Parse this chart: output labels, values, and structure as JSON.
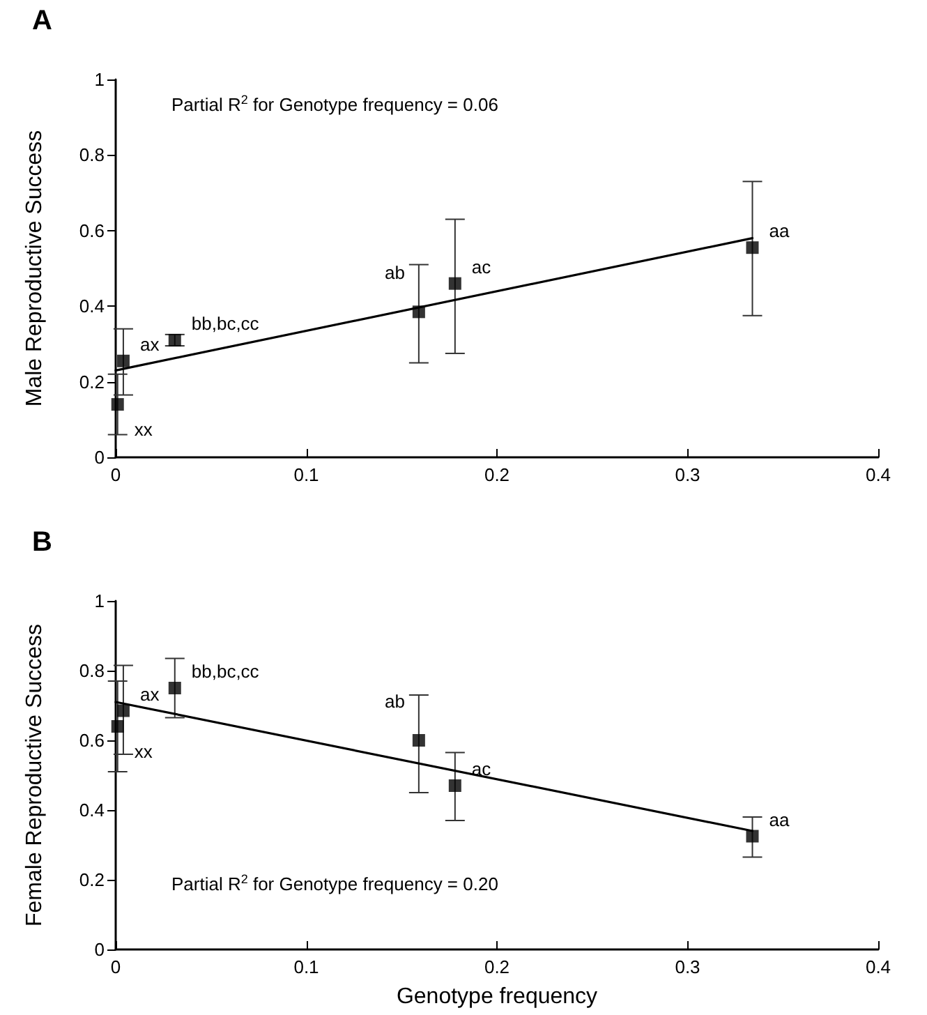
{
  "chart_data": [
    {
      "type": "scatter",
      "title": "A",
      "ylabel": "Male Reproductive Success",
      "xlim": [
        0,
        0.4
      ],
      "xticks": [
        0,
        0.1,
        0.2,
        0.3,
        0.4
      ],
      "ylim": [
        0,
        1
      ],
      "yticks": [
        0,
        0.2,
        0.4,
        0.6,
        0.8,
        1
      ],
      "grid": false,
      "marker": "square",
      "series": [
        {
          "color": "#000000",
          "x": [
            0.001,
            0.004,
            0.031,
            0.159,
            0.178,
            0.334
          ],
          "values": [
            0.14,
            0.255,
            0.31,
            0.385,
            0.46,
            0.555
          ],
          "errors": [
            [
              0.06,
              0.22
            ],
            [
              0.165,
              0.34
            ],
            [
              0.295,
              0.325
            ],
            [
              0.25,
              0.51
            ],
            [
              0.275,
              0.63
            ],
            [
              0.375,
              0.73
            ]
          ]
        },
        {
          "type": "line",
          "color": "#000000",
          "marker": "none",
          "line_style": "solid",
          "x": [
            0,
            0.334
          ],
          "values": [
            0.23,
            0.58
          ]
        }
      ],
      "annotations": [
        "Partial R$^{2}$ for Genotype frequency = 0.06",
        {
          "text": "xx",
          "x": 0.001,
          "y": 0.14
        },
        {
          "text": "ax",
          "x": 0.004,
          "y": 0.255
        },
        {
          "text": "bb,bc,cc",
          "x": 0.031,
          "y": 0.31
        },
        {
          "text": "ab",
          "x": 0.159,
          "y": 0.385
        },
        {
          "text": "ac",
          "x": 0.178,
          "y": 0.46
        },
        {
          "text": "aa",
          "x": 0.334,
          "y": 0.555
        }
      ]
    },
    {
      "type": "scatter",
      "title": "B",
      "ylabel": "Female Reproductive Success",
      "xlabel": "Genotype frequency",
      "xlim": [
        0,
        0.4
      ],
      "xticks": [
        0,
        0.1,
        0.2,
        0.3,
        0.4
      ],
      "ylim": [
        0,
        1
      ],
      "yticks": [
        0,
        0.2,
        0.4,
        0.6,
        0.8,
        1
      ],
      "grid": false,
      "marker": "square",
      "series": [
        {
          "color": "#000000",
          "x": [
            0.001,
            0.004,
            0.031,
            0.159,
            0.178,
            0.334
          ],
          "values": [
            0.64,
            0.685,
            0.75,
            0.6,
            0.47,
            0.325
          ],
          "errors": [
            [
              0.51,
              0.77
            ],
            [
              0.56,
              0.815
            ],
            [
              0.665,
              0.835
            ],
            [
              0.45,
              0.73
            ],
            [
              0.37,
              0.565
            ],
            [
              0.265,
              0.38
            ]
          ]
        },
        {
          "type": "line",
          "color": "#000000",
          "marker": "none",
          "line_style": "solid",
          "x": [
            0,
            0.334
          ],
          "values": [
            0.71,
            0.34
          ]
        }
      ],
      "annotations": [
        "Partial R$^{2}$ for Genotype frequency = 0.20",
        {
          "text": "xx",
          "x": 0.001,
          "y": 0.64
        },
        {
          "text": "ax",
          "x": 0.004,
          "y": 0.685
        },
        {
          "text": "bb,bc,cc",
          "x": 0.031,
          "y": 0.75
        },
        {
          "text": "ab",
          "x": 0.159,
          "y": 0.6
        },
        {
          "text": "ac",
          "x": 0.178,
          "y": 0.47
        },
        {
          "text": "aa",
          "x": 0.334,
          "y": 0.325
        }
      ]
    }
  ]
}
